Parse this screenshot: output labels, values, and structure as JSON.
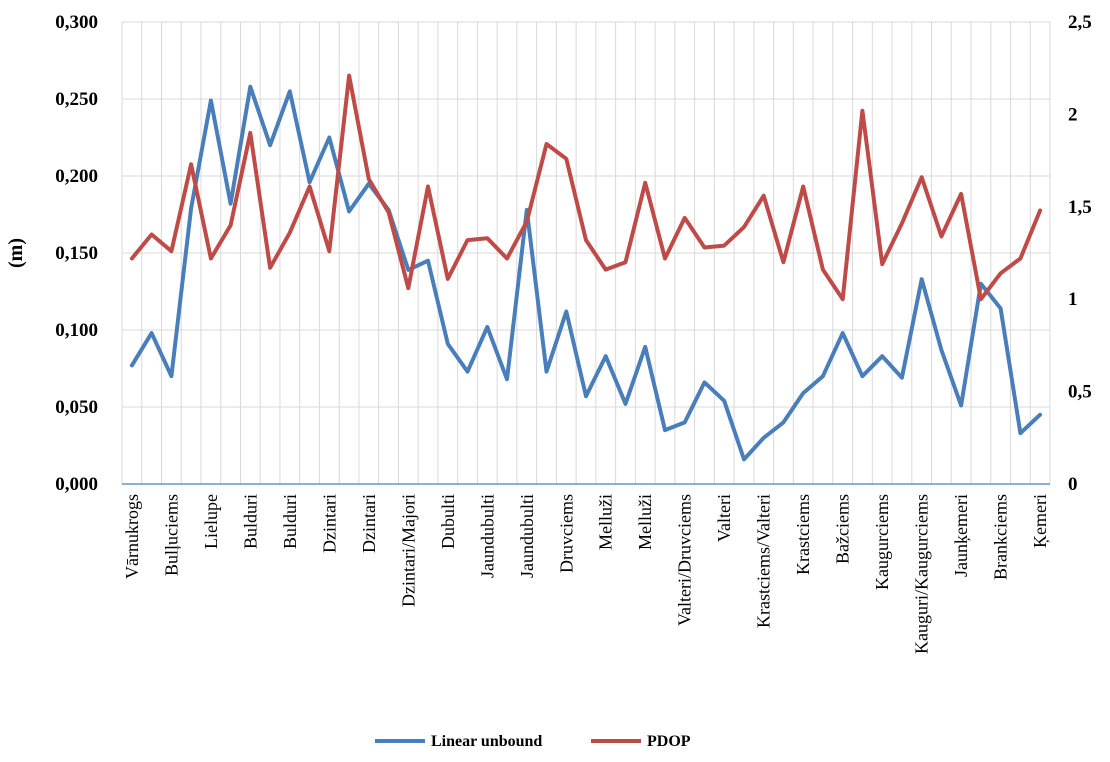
{
  "chart_data": {
    "type": "line",
    "ylabel": "(m)",
    "y_left": {
      "lim": [
        0,
        0.3
      ],
      "ticks": [
        0,
        0.05,
        0.1,
        0.15,
        0.2,
        0.25,
        0.3
      ],
      "tick_labels": [
        "0,000",
        "0,050",
        "0,100",
        "0,150",
        "0,200",
        "0,250",
        "0,300"
      ]
    },
    "y_right": {
      "lim": [
        0,
        2.5
      ],
      "ticks": [
        0,
        0.5,
        1,
        1.5,
        2,
        2.5
      ],
      "tick_labels": [
        "0",
        "0,5",
        "1",
        "1,5",
        "2",
        "2,5"
      ]
    },
    "x_tick_labels": [
      "Vārnukrogs",
      "Bulļuciems",
      "Lielupe",
      "Bulduri",
      "Bulduri",
      "Dzintari",
      "Dzintari",
      "Dzintari/Majori",
      "Dubulti",
      "Jaundubulti",
      "Jaundubulti",
      "Druvciems",
      "Melluži",
      "Melluži",
      "Valteri/Druvciems",
      "Valteri",
      "Krastciems/Valteri",
      "Krastciems",
      "Bažciems",
      "Kaugurciems",
      "Kauguri/Kaugurciems",
      "Jaunķemeri",
      "Brankciems",
      "Ķemeri"
    ],
    "grid": true,
    "legend_position": "bottom",
    "series": [
      {
        "name": "Linear unbound",
        "axis": "left",
        "color": "#4a7ebb",
        "values": [
          0.077,
          0.098,
          0.07,
          0.179,
          0.249,
          0.182,
          0.258,
          0.22,
          0.255,
          0.196,
          0.225,
          0.177,
          0.195,
          0.178,
          0.139,
          0.145,
          0.091,
          0.073,
          0.102,
          0.068,
          0.178,
          0.073,
          0.112,
          0.057,
          0.083,
          0.052,
          0.089,
          0.035,
          0.04,
          0.066,
          0.054,
          0.016,
          0.03,
          0.04,
          0.059,
          0.07,
          0.098,
          0.07,
          0.083,
          0.069,
          0.133,
          0.087,
          0.051,
          0.13,
          0.114,
          0.033,
          0.045
        ]
      },
      {
        "name": "PDOP",
        "axis": "right",
        "color": "#be4b48",
        "values": [
          1.22,
          1.35,
          1.26,
          1.73,
          1.22,
          1.4,
          1.9,
          1.17,
          1.36,
          1.61,
          1.26,
          2.21,
          1.65,
          1.47,
          1.06,
          1.61,
          1.11,
          1.32,
          1.33,
          1.22,
          1.42,
          1.84,
          1.76,
          1.32,
          1.16,
          1.2,
          1.63,
          1.22,
          1.44,
          1.28,
          1.29,
          1.39,
          1.56,
          1.2,
          1.61,
          1.16,
          1.0,
          2.02,
          1.19,
          1.41,
          1.66,
          1.34,
          1.57,
          1.0,
          1.14,
          1.22,
          1.48
        ]
      }
    ]
  }
}
